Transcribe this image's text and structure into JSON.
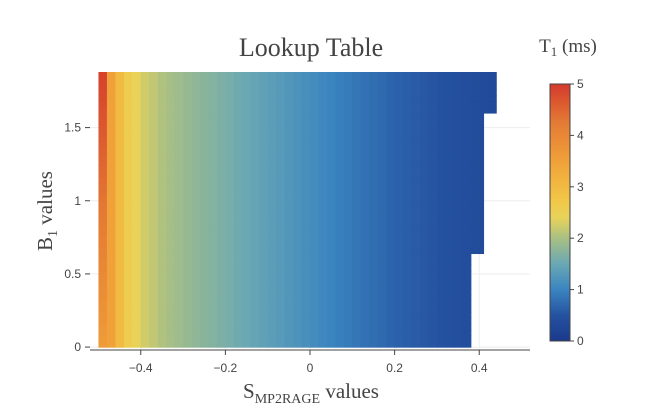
{
  "chart_data": {
    "type": "heatmap",
    "title": "Lookup Table",
    "xlabel": {
      "main": "S",
      "sub": "MP2RAGE",
      "rest": " values"
    },
    "ylabel": {
      "main": "B",
      "sub": "1",
      "rest": "  values"
    },
    "colorbar_title": {
      "main": "T",
      "sub": "1",
      "rest": " (ms)"
    },
    "xlim": [
      -0.52,
      0.52
    ],
    "ylim": [
      -0.02,
      1.88
    ],
    "x_ticks": [
      {
        "value": -0.4,
        "label": "−0.4"
      },
      {
        "value": -0.2,
        "label": "−0.2"
      },
      {
        "value": 0,
        "label": "0"
      },
      {
        "value": 0.2,
        "label": "0.2"
      },
      {
        "value": 0.4,
        "label": "0.4"
      }
    ],
    "y_ticks": [
      {
        "value": 0,
        "label": "0"
      },
      {
        "value": 0.5,
        "label": "0.5"
      },
      {
        "value": 1,
        "label": "1"
      },
      {
        "value": 1.5,
        "label": "1.5"
      }
    ],
    "x_range": [
      -0.5,
      0.44
    ],
    "x_step": 0.02,
    "y_range": [
      0.0,
      1.88
    ],
    "y_step": 0.04,
    "row_max_x": [
      {
        "y_from": 0.0,
        "y_to": 0.64,
        "x_max": 0.38
      },
      {
        "y_from": 0.64,
        "y_to": 1.6,
        "x_max": 0.41
      },
      {
        "y_from": 1.6,
        "y_to": 1.88,
        "x_max": 0.44
      }
    ],
    "t1_profile": [
      [
        -0.5,
        4.9
      ],
      [
        -0.48,
        3.5
      ],
      [
        -0.46,
        3.0
      ],
      [
        -0.44,
        2.6
      ],
      [
        -0.4,
        2.25
      ],
      [
        -0.35,
        2.0
      ],
      [
        -0.3,
        1.85
      ],
      [
        -0.2,
        1.6
      ],
      [
        -0.1,
        1.35
      ],
      [
        0.0,
        1.1
      ],
      [
        0.1,
        0.85
      ],
      [
        0.2,
        0.65
      ],
      [
        0.3,
        0.5
      ],
      [
        0.44,
        0.3
      ]
    ],
    "colorscale": [
      [
        0.0,
        "#1a3a8c"
      ],
      [
        0.1,
        "#2552a0"
      ],
      [
        0.2,
        "#3a85c0"
      ],
      [
        0.3,
        "#6aa8b4"
      ],
      [
        0.4,
        "#a9c083"
      ],
      [
        0.48,
        "#e8d35a"
      ],
      [
        0.55,
        "#f2c647"
      ],
      [
        0.7,
        "#f0a13a"
      ],
      [
        0.85,
        "#e47a34"
      ],
      [
        1.0,
        "#d43a2c"
      ]
    ],
    "zmin": 0,
    "zmax": 5,
    "colorbar_ticks": [
      0,
      1,
      2,
      3,
      4,
      5
    ],
    "grid": true,
    "legend": "colorbar-right"
  }
}
